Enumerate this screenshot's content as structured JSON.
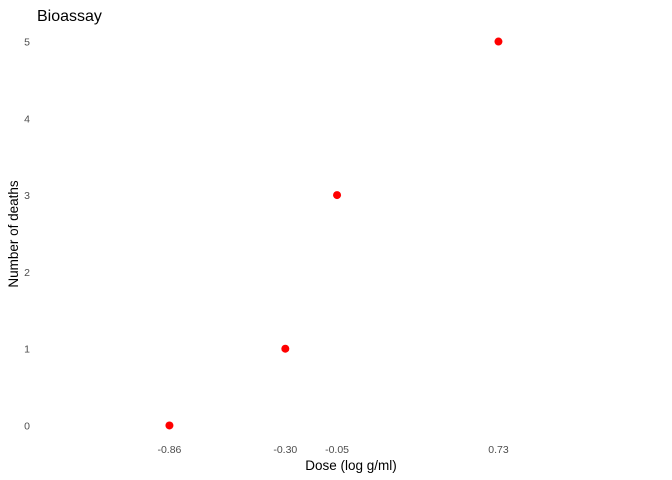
{
  "chart_data": {
    "type": "scatter",
    "title": "Bioassay",
    "xlabel": "Dose (log g/ml)",
    "ylabel": "Number of deaths",
    "x": [
      -0.86,
      -0.3,
      -0.05,
      0.73
    ],
    "y": [
      0,
      1,
      3,
      5
    ],
    "x_ticks": [
      -0.86,
      -0.3,
      -0.05,
      0.73
    ],
    "x_tick_labels": [
      "-0.86",
      "-0.30",
      "-0.05",
      "0.73"
    ],
    "y_ticks": [
      0,
      1,
      2,
      3,
      4,
      5
    ],
    "y_tick_labels": [
      "0",
      "1",
      "2",
      "3",
      "4",
      "5"
    ],
    "xlim": [
      -1.5,
      1.53
    ],
    "ylim": [
      -0.15,
      5.15
    ],
    "grid": false,
    "legend": "none",
    "point_color": "#ff0000"
  }
}
